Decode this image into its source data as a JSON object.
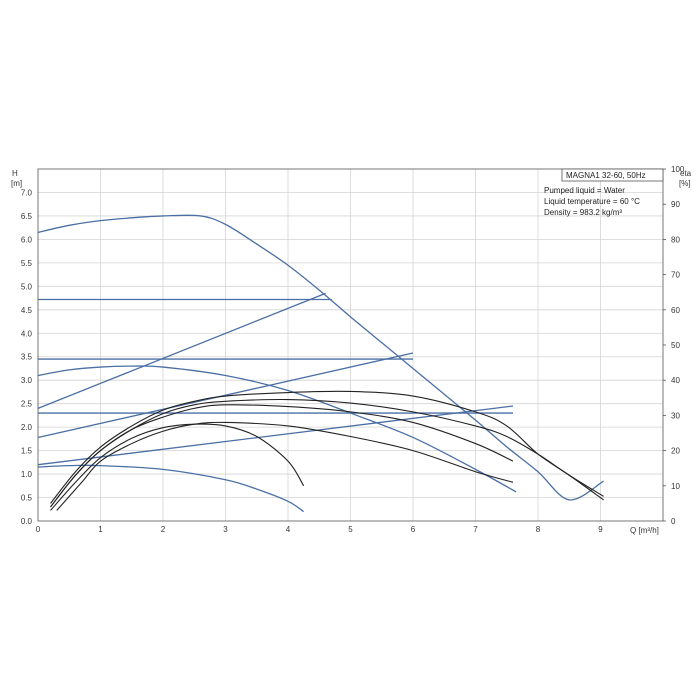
{
  "chart_data": {
    "type": "line",
    "title": "MAGNA1 32-60, 50Hz",
    "info_lines": [
      "Pumped liquid = Water",
      "Liquid temperature = 60 °C",
      "Density = 983.2 kg/m³"
    ],
    "left_axis": {
      "label": "H",
      "unit": "[m]",
      "range": [
        0,
        7.5
      ],
      "ticks": [
        "0.0",
        "0.5",
        "1.0",
        "1.5",
        "2.0",
        "2.5",
        "3.0",
        "3.5",
        "4.0",
        "4.5",
        "5.0",
        "5.5",
        "6.0",
        "6.5",
        "7.0"
      ]
    },
    "right_axis": {
      "label": "eta",
      "unit": "[%]",
      "range": [
        0,
        100
      ],
      "ticks": [
        "0",
        "10",
        "20",
        "30",
        "40",
        "50",
        "60",
        "70",
        "80",
        "90",
        "100"
      ]
    },
    "x_axis": {
      "label": "Q [m³/h]",
      "range": [
        0,
        10
      ],
      "ticks": [
        "0",
        "1",
        "2",
        "3",
        "4",
        "5",
        "6",
        "7",
        "8",
        "9"
      ]
    },
    "grid": true,
    "colors": {
      "pump_curve": "#4a6fa5",
      "eta_curve": "#222222",
      "grid": "#d4d4d4"
    },
    "series": [
      {
        "role": "head",
        "values": [
          [
            0,
            6.15
          ],
          [
            0.5,
            6.3
          ],
          [
            1,
            6.4
          ],
          [
            1.5,
            6.46
          ],
          [
            2,
            6.5
          ],
          [
            2.6,
            6.5
          ],
          [
            3,
            6.32
          ],
          [
            3.5,
            5.9
          ],
          [
            4,
            5.45
          ],
          [
            4.5,
            4.92
          ],
          [
            5,
            4.35
          ],
          [
            5.5,
            3.8
          ],
          [
            6,
            3.25
          ],
          [
            6.5,
            2.7
          ],
          [
            7,
            2.15
          ],
          [
            7.5,
            1.58
          ],
          [
            8,
            1.05
          ],
          [
            8.5,
            0.45
          ],
          [
            9.05,
            0.85
          ]
        ]
      },
      {
        "role": "head",
        "values": [
          [
            0,
            4.72
          ],
          [
            4.7,
            4.72
          ]
        ]
      },
      {
        "role": "head",
        "values": [
          [
            0,
            3.45
          ],
          [
            6.0,
            3.45
          ]
        ]
      },
      {
        "role": "head",
        "values": [
          [
            0,
            2.3
          ],
          [
            7.6,
            2.3
          ]
        ]
      },
      {
        "role": "head",
        "values": [
          [
            0,
            3.1
          ],
          [
            0.5,
            3.22
          ],
          [
            1,
            3.28
          ],
          [
            1.5,
            3.3
          ],
          [
            2,
            3.28
          ],
          [
            3,
            3.1
          ],
          [
            4,
            2.78
          ],
          [
            5,
            2.3
          ],
          [
            6,
            1.78
          ],
          [
            7,
            1.1
          ],
          [
            7.65,
            0.62
          ]
        ]
      },
      {
        "role": "head",
        "values": [
          [
            0,
            1.15
          ],
          [
            0.5,
            1.18
          ],
          [
            1,
            1.18
          ],
          [
            2,
            1.1
          ],
          [
            3,
            0.88
          ],
          [
            3.5,
            0.68
          ],
          [
            4,
            0.42
          ],
          [
            4.25,
            0.2
          ]
        ]
      },
      {
        "role": "proportional",
        "values": [
          [
            0,
            2.4
          ],
          [
            4.6,
            4.85
          ]
        ]
      },
      {
        "role": "proportional",
        "values": [
          [
            0,
            1.78
          ],
          [
            6.0,
            3.58
          ]
        ]
      },
      {
        "role": "proportional",
        "values": [
          [
            0,
            1.2
          ],
          [
            7.6,
            2.45
          ]
        ]
      },
      {
        "role": "eta",
        "values": [
          [
            0.2,
            4
          ],
          [
            0.6,
            13
          ],
          [
            1,
            20
          ],
          [
            1.5,
            26
          ],
          [
            2,
            30.5
          ],
          [
            2.5,
            33
          ],
          [
            3,
            34
          ],
          [
            4,
            34.5
          ],
          [
            5,
            33.5
          ],
          [
            6,
            31
          ],
          [
            7,
            27
          ],
          [
            7.5,
            24
          ],
          [
            8,
            19
          ],
          [
            8.5,
            13
          ],
          [
            9.05,
            7
          ]
        ]
      },
      {
        "role": "eta",
        "values": [
          [
            0.2,
            5
          ],
          [
            0.6,
            14
          ],
          [
            1,
            21
          ],
          [
            1.5,
            27
          ],
          [
            2,
            31.5
          ],
          [
            2.5,
            34
          ],
          [
            3,
            35.5
          ],
          [
            4,
            36.5
          ],
          [
            5,
            36.8
          ],
          [
            6,
            35.5
          ],
          [
            7,
            31
          ],
          [
            7.5,
            27
          ],
          [
            8,
            19
          ],
          [
            8.5,
            13
          ],
          [
            9.05,
            6
          ]
        ]
      },
      {
        "role": "eta",
        "values": [
          [
            0.2,
            4
          ],
          [
            0.6,
            13
          ],
          [
            1,
            20
          ],
          [
            1.5,
            26
          ],
          [
            2,
            29.5
          ],
          [
            2.5,
            32
          ],
          [
            3,
            33
          ],
          [
            4,
            32.5
          ],
          [
            5,
            31
          ],
          [
            6,
            28
          ],
          [
            7,
            22
          ],
          [
            7.6,
            17
          ]
        ]
      },
      {
        "role": "eta",
        "values": [
          [
            0.2,
            3
          ],
          [
            0.6,
            11
          ],
          [
            1,
            18
          ],
          [
            1.5,
            23.5
          ],
          [
            2,
            26.5
          ],
          [
            2.5,
            27.5
          ],
          [
            3,
            27
          ],
          [
            3.5,
            24
          ],
          [
            4,
            17
          ],
          [
            4.25,
            10
          ]
        ]
      },
      {
        "role": "eta",
        "values": [
          [
            0.3,
            3
          ],
          [
            0.7,
            11
          ],
          [
            1,
            17
          ],
          [
            1.5,
            22
          ],
          [
            2,
            25.5
          ],
          [
            2.5,
            27.5
          ],
          [
            3,
            28
          ],
          [
            4,
            27
          ],
          [
            5,
            24
          ],
          [
            6,
            20
          ],
          [
            7,
            14
          ],
          [
            7.6,
            11
          ]
        ]
      }
    ]
  }
}
